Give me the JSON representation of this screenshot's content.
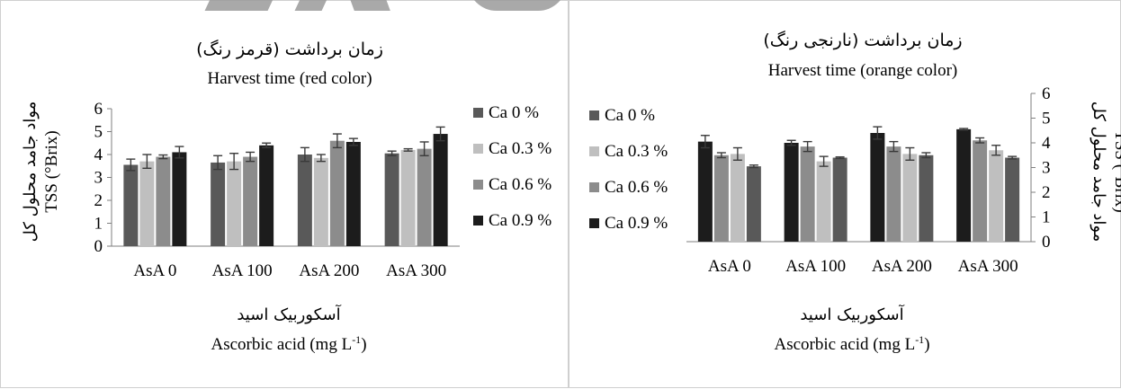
{
  "chart_data": [
    {
      "type": "bar",
      "title": "زمان برداشت (قرمز رنگ)",
      "subtitle": "Harvest time (red color)",
      "ylabel_fa": "مواد جامد محلول کل",
      "ylabel": "TSS (°Brix)",
      "xlabel_fa": "آسکوربیک اسید",
      "xlabel": "Ascorbic acid (mg L",
      "xlabel_sup": "-1",
      "xlabel_end": ")",
      "categories": [
        "AsA 0",
        "AsA 100",
        "AsA 200",
        "AsA 300"
      ],
      "ylim": [
        0,
        6
      ],
      "yticks": [
        "0",
        "1",
        "2",
        "3",
        "4",
        "5",
        "6"
      ],
      "legend_position": "right",
      "series": [
        {
          "name": "Ca 0 %",
          "color": "#595959",
          "values": [
            3.55,
            3.65,
            4.0,
            4.05
          ],
          "errors": [
            0.25,
            0.3,
            0.3,
            0.1
          ]
        },
        {
          "name": "Ca 0.3 %",
          "color": "#bfbfbf",
          "values": [
            3.7,
            3.7,
            3.85,
            4.2
          ],
          "errors": [
            0.3,
            0.35,
            0.15,
            0.05
          ]
        },
        {
          "name": "Ca 0.6 %",
          "color": "#8c8c8c",
          "values": [
            3.9,
            3.9,
            4.6,
            4.25
          ],
          "errors": [
            0.08,
            0.2,
            0.3,
            0.3
          ]
        },
        {
          "name": "Ca 0.9 %",
          "color": "#1c1c1c",
          "values": [
            4.1,
            4.4,
            4.55,
            4.9
          ],
          "errors": [
            0.25,
            0.1,
            0.15,
            0.3
          ]
        }
      ]
    },
    {
      "type": "bar",
      "title": "زمان برداشت (نارنجی رنگ)",
      "subtitle": "Harvest time (orange color)",
      "ylabel_fa": "مواد جامد محلول کل",
      "ylabel": "TSS (°Brix)",
      "xlabel_fa": "آسکوربیک اسید",
      "xlabel": "Ascorbic acid (mg L",
      "xlabel_sup": "-1",
      "xlabel_end": ")",
      "categories": [
        "AsA 0",
        "AsA 100",
        "AsA 200",
        "AsA 300"
      ],
      "ylim": [
        0,
        6
      ],
      "yticks": [
        "0",
        "1",
        "2",
        "3",
        "4",
        "5",
        "6"
      ],
      "legend_position": "left",
      "series": [
        {
          "name": "Ca 0 %",
          "color": "#595959",
          "values": [
            3.05,
            3.4,
            3.5,
            3.4
          ],
          "errors": [
            0.05,
            0.03,
            0.1,
            0.05
          ]
        },
        {
          "name": "Ca 0.3 %",
          "color": "#bfbfbf",
          "values": [
            3.55,
            3.25,
            3.55,
            3.7
          ],
          "errors": [
            0.25,
            0.2,
            0.25,
            0.2
          ]
        },
        {
          "name": "Ca 0.6 %",
          "color": "#8c8c8c",
          "values": [
            3.5,
            3.85,
            3.85,
            4.1
          ],
          "errors": [
            0.1,
            0.2,
            0.2,
            0.1
          ]
        },
        {
          "name": "Ca 0.9 %",
          "color": "#1c1c1c",
          "values": [
            4.05,
            4.0,
            4.4,
            4.55
          ],
          "errors": [
            0.25,
            0.1,
            0.25,
            0.03
          ]
        }
      ]
    }
  ]
}
